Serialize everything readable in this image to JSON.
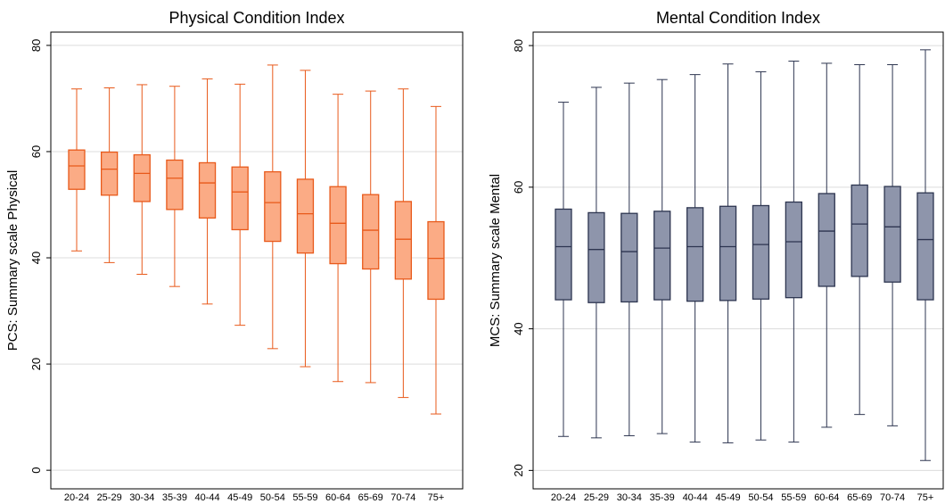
{
  "chart_data": [
    {
      "type": "box",
      "title": "Physical Condition Index",
      "y_label": "PCS: Summary scale Physical",
      "categories": [
        "20-24",
        "25-29",
        "30-34",
        "35-39",
        "40-44",
        "45-49",
        "50-54",
        "55-59",
        "60-64",
        "65-69",
        "70-74",
        "75+"
      ],
      "min": [
        41.3,
        39.1,
        36.9,
        34.6,
        31.3,
        27.3,
        22.9,
        19.5,
        16.7,
        16.5,
        13.7,
        10.6
      ],
      "q1": [
        52.9,
        51.8,
        50.6,
        49.1,
        47.5,
        45.3,
        43.1,
        40.9,
        38.9,
        37.9,
        36.0,
        32.2
      ],
      "median": [
        57.3,
        56.7,
        55.9,
        55.0,
        54.1,
        52.4,
        50.4,
        48.3,
        46.5,
        45.2,
        43.5,
        39.9
      ],
      "q3": [
        60.3,
        59.9,
        59.4,
        58.4,
        57.9,
        57.1,
        56.2,
        54.8,
        53.4,
        51.9,
        50.6,
        46.8
      ],
      "max": [
        71.8,
        72.0,
        72.6,
        72.3,
        73.7,
        72.7,
        76.3,
        75.3,
        70.8,
        71.4,
        71.8,
        68.5
      ],
      "fill": "#fbab85",
      "color": "#e8591a",
      "ylim": [
        -3.5,
        82.5
      ],
      "yticks": [
        0,
        20,
        40,
        60,
        80
      ],
      "grid": true
    },
    {
      "type": "box",
      "title": "Mental Condition Index",
      "y_label": "MCS: Summary scale Mental",
      "categories": [
        "20-24",
        "25-29",
        "30-34",
        "35-39",
        "40-44",
        "45-49",
        "50-54",
        "55-59",
        "60-64",
        "65-69",
        "70-74",
        "75+"
      ],
      "min": [
        24.8,
        24.6,
        24.9,
        25.2,
        24.0,
        23.9,
        24.3,
        24.0,
        26.1,
        27.9,
        26.3,
        21.4
      ],
      "q1": [
        44.1,
        43.7,
        43.8,
        44.1,
        43.9,
        44.0,
        44.2,
        44.4,
        46.0,
        47.4,
        46.6,
        44.1
      ],
      "median": [
        51.6,
        51.2,
        50.9,
        51.4,
        51.6,
        51.6,
        51.9,
        52.3,
        53.8,
        54.8,
        54.4,
        52.6
      ],
      "q3": [
        56.9,
        56.4,
        56.3,
        56.6,
        57.1,
        57.3,
        57.4,
        57.9,
        59.1,
        60.3,
        60.1,
        59.2
      ],
      "max": [
        72.0,
        74.1,
        74.7,
        75.2,
        75.9,
        77.4,
        76.3,
        77.8,
        77.5,
        77.3,
        77.3,
        79.4
      ],
      "fill": "#8e95ab",
      "color": "#2d3550",
      "ylim": [
        17.4,
        81.9
      ],
      "yticks": [
        20,
        40,
        60,
        80
      ],
      "grid": true
    }
  ]
}
